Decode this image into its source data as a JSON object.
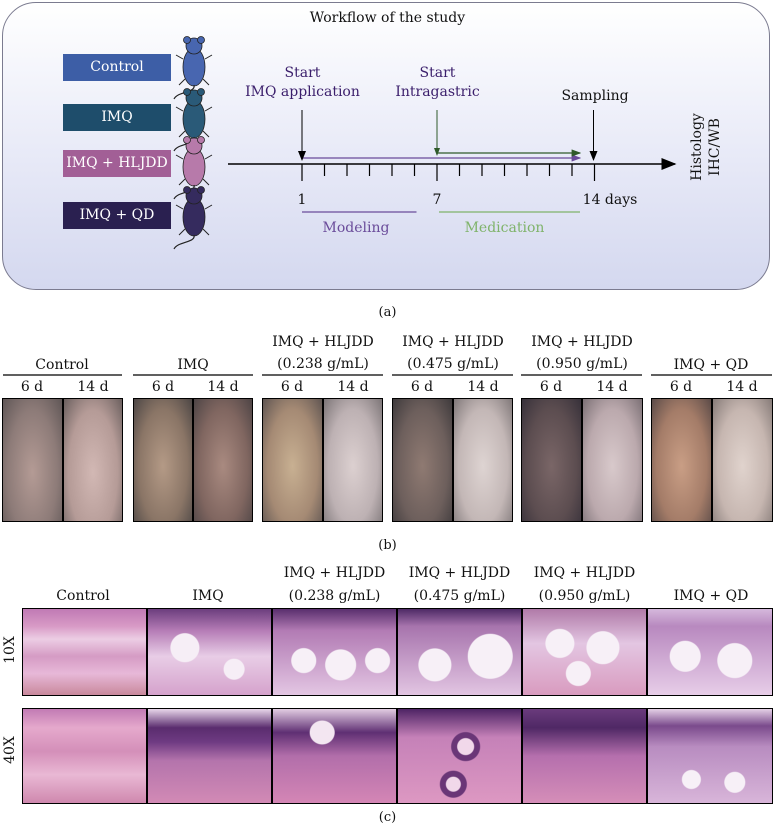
{
  "panel_a": {
    "title": "Workflow of the study",
    "groups": [
      {
        "label": "Control",
        "color": "#3d5ea6",
        "mouse_color": "#4866b0"
      },
      {
        "label": "IMQ",
        "color": "#1e4d6b",
        "mouse_color": "#2a5a78"
      },
      {
        "label": "IMQ + HLJDD",
        "color": "#a25f96",
        "mouse_color": "#b77aaa"
      },
      {
        "label": "IMQ + QD",
        "color": "#2a2050",
        "mouse_color": "#352b5e"
      }
    ],
    "start_imq": "Start\nIMQ application",
    "start_intragastric": "Start\nIntragastric",
    "sampling": "Sampling",
    "day1": "1",
    "day7": "7",
    "day14": "14 days",
    "modeling": "Modeling",
    "medication": "Medication",
    "histology": "Histology\nIHC/WB",
    "modeling_color": "#6a4b9a",
    "medication_color": "#7fb36a",
    "label": "(a)"
  },
  "panel_b": {
    "groups": [
      {
        "name": "Control",
        "dose": ""
      },
      {
        "name": "IMQ",
        "dose": ""
      },
      {
        "name": "IMQ + HLJDD",
        "dose": "(0.238 g/mL)"
      },
      {
        "name": "IMQ + HLJDD",
        "dose": "(0.475 g/mL)"
      },
      {
        "name": "IMQ + HLJDD",
        "dose": "(0.950 g/mL)"
      },
      {
        "name": "IMQ + QD",
        "dose": ""
      }
    ],
    "day_6": "6 d",
    "day_14": "14 d",
    "label": "(b)"
  },
  "panel_c": {
    "headers": [
      {
        "name": "Control",
        "dose": ""
      },
      {
        "name": "IMQ",
        "dose": ""
      },
      {
        "name": "IMQ + HLJDD",
        "dose": "(0.238 g/mL)"
      },
      {
        "name": "IMQ + HLJDD",
        "dose": "(0.475 g/mL)"
      },
      {
        "name": "IMQ + HLJDD",
        "dose": "(0.950 g/mL)"
      },
      {
        "name": "IMQ + QD",
        "dose": ""
      }
    ],
    "row_10x": "10X",
    "row_40x": "40X",
    "label": "(c)"
  }
}
